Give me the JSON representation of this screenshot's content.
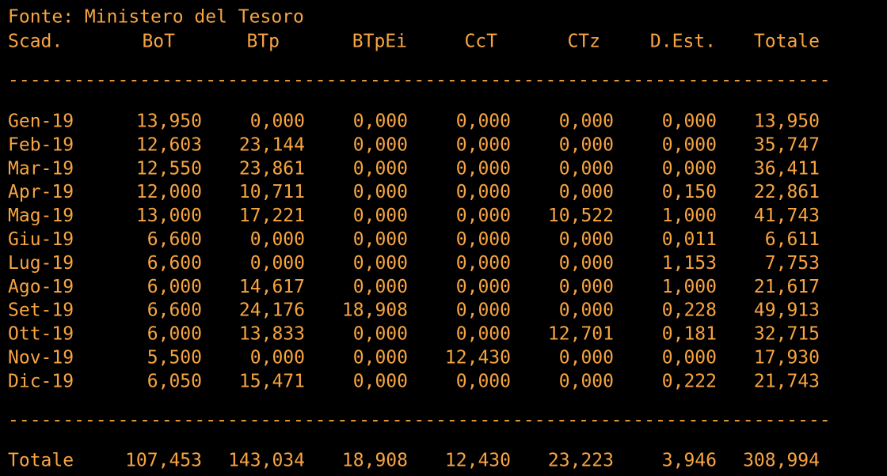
{
  "source": "Fonte: Ministero del Tesoro",
  "table": {
    "headers": [
      "Scad.",
      "BoT",
      "BTp",
      "BTpEi",
      "CcT",
      "CTz",
      "D.Est.",
      "Totale"
    ],
    "separator": "---------------------------------------------------------------------------",
    "rows": [
      [
        "Gen-19",
        "13,950",
        "0,000",
        "0,000",
        "0,000",
        "0,000",
        "0,000",
        "13,950"
      ],
      [
        "Feb-19",
        "12,603",
        "23,144",
        "0,000",
        "0,000",
        "0,000",
        "0,000",
        "35,747"
      ],
      [
        "Mar-19",
        "12,550",
        "23,861",
        "0,000",
        "0,000",
        "0,000",
        "0,000",
        "36,411"
      ],
      [
        "Apr-19",
        "12,000",
        "10,711",
        "0,000",
        "0,000",
        "0,000",
        "0,150",
        "22,861"
      ],
      [
        "Mag-19",
        "13,000",
        "17,221",
        "0,000",
        "0,000",
        "10,522",
        "1,000",
        "41,743"
      ],
      [
        "Giu-19",
        "6,600",
        "0,000",
        "0,000",
        "0,000",
        "0,000",
        "0,011",
        "6,611"
      ],
      [
        "Lug-19",
        "6,600",
        "0,000",
        "0,000",
        "0,000",
        "0,000",
        "1,153",
        "7,753"
      ],
      [
        "Ago-19",
        "6,000",
        "14,617",
        "0,000",
        "0,000",
        "0,000",
        "1,000",
        "21,617"
      ],
      [
        "Set-19",
        "6,600",
        "24,176",
        "18,908",
        "0,000",
        "0,000",
        "0,228",
        "49,913"
      ],
      [
        "Ott-19",
        "6,000",
        "13,833",
        "0,000",
        "0,000",
        "12,701",
        "0,181",
        "32,715"
      ],
      [
        "Nov-19",
        "5,500",
        "0,000",
        "0,000",
        "12,430",
        "0,000",
        "0,000",
        "17,930"
      ],
      [
        "Dic-19",
        "6,050",
        "15,471",
        "0,000",
        "0,000",
        "0,000",
        "0,222",
        "21,743"
      ]
    ],
    "totals": [
      "Totale",
      "107,453",
      "143,034",
      "18,908",
      "12,430",
      "23,223",
      "3,946",
      "308,994"
    ]
  }
}
